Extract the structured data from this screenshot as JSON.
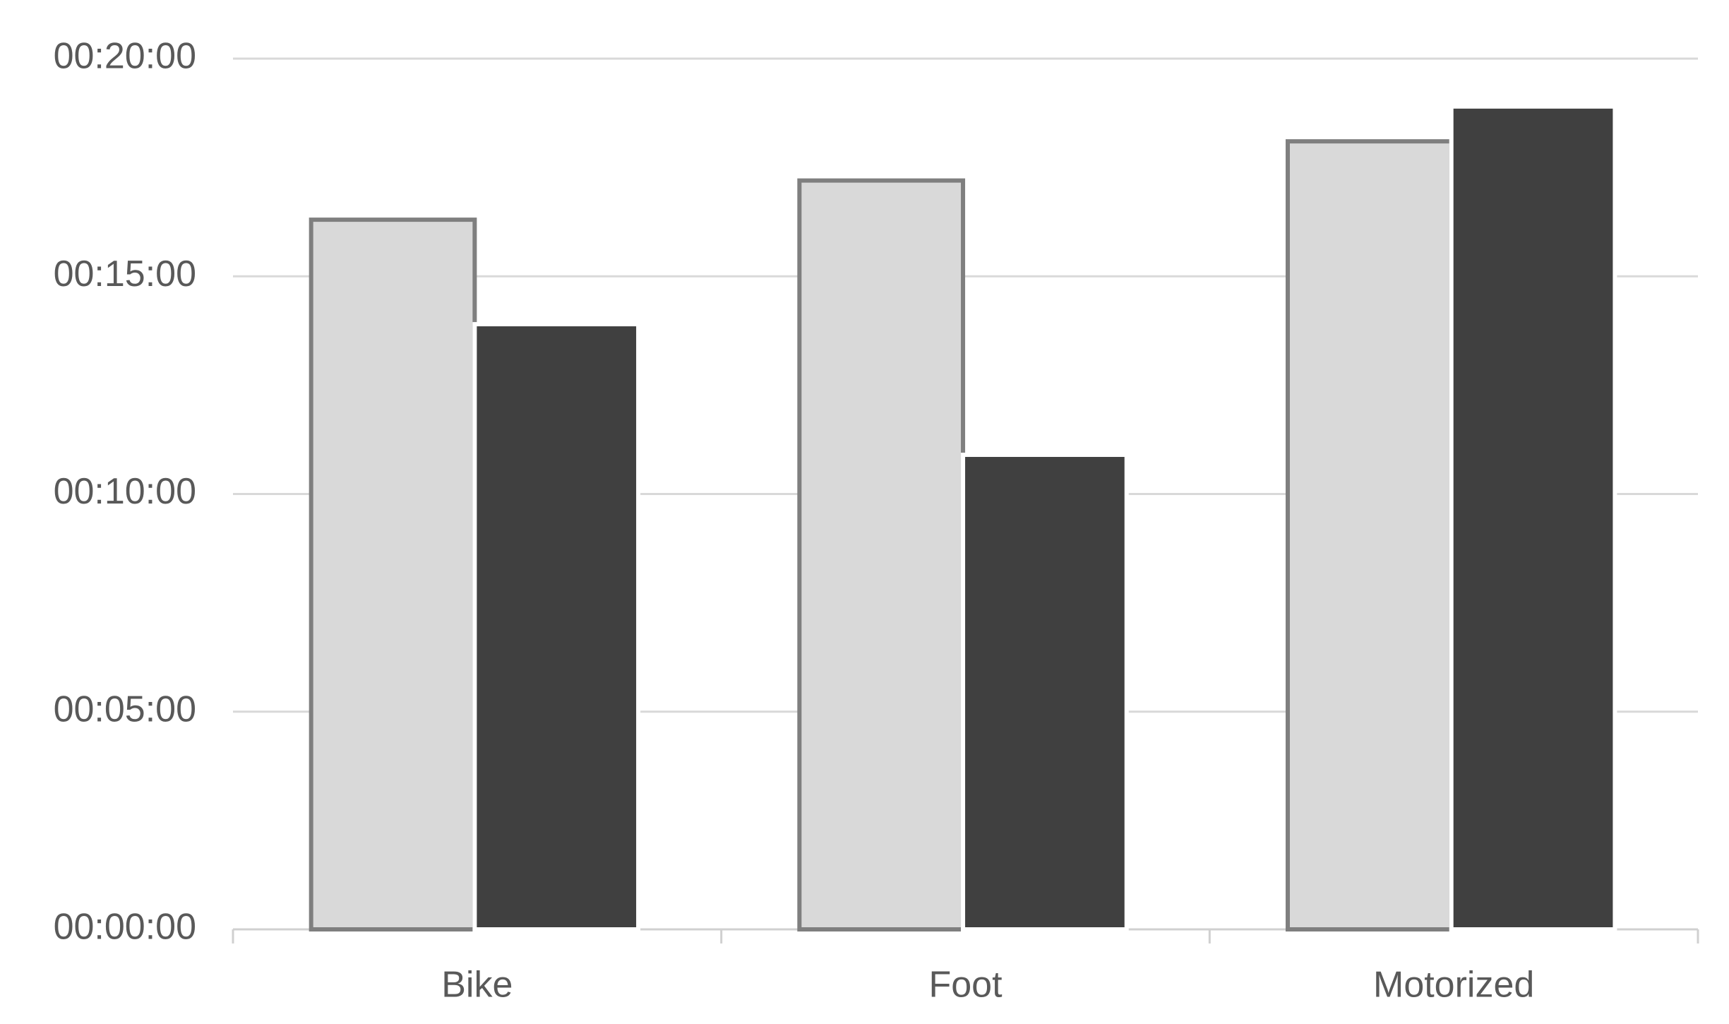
{
  "chart_data": {
    "type": "bar",
    "categories": [
      "Bike",
      "Foot",
      "Motorized"
    ],
    "series": [
      {
        "color": "#d9d9d9",
        "values": [
          16.3,
          17.2,
          18.1
        ]
      },
      {
        "color": "#404040",
        "values": [
          13.9,
          10.9,
          18.9
        ]
      }
    ],
    "ylim": [
      0,
      20
    ],
    "yticks": [
      {
        "value": 0,
        "label": "00:00:00"
      },
      {
        "value": 5,
        "label": "00:05:00"
      },
      {
        "value": 10,
        "label": "00:10:00"
      },
      {
        "value": 15,
        "label": "00:15:00"
      },
      {
        "value": 20,
        "label": "00:20:00"
      }
    ],
    "grid": true
  }
}
